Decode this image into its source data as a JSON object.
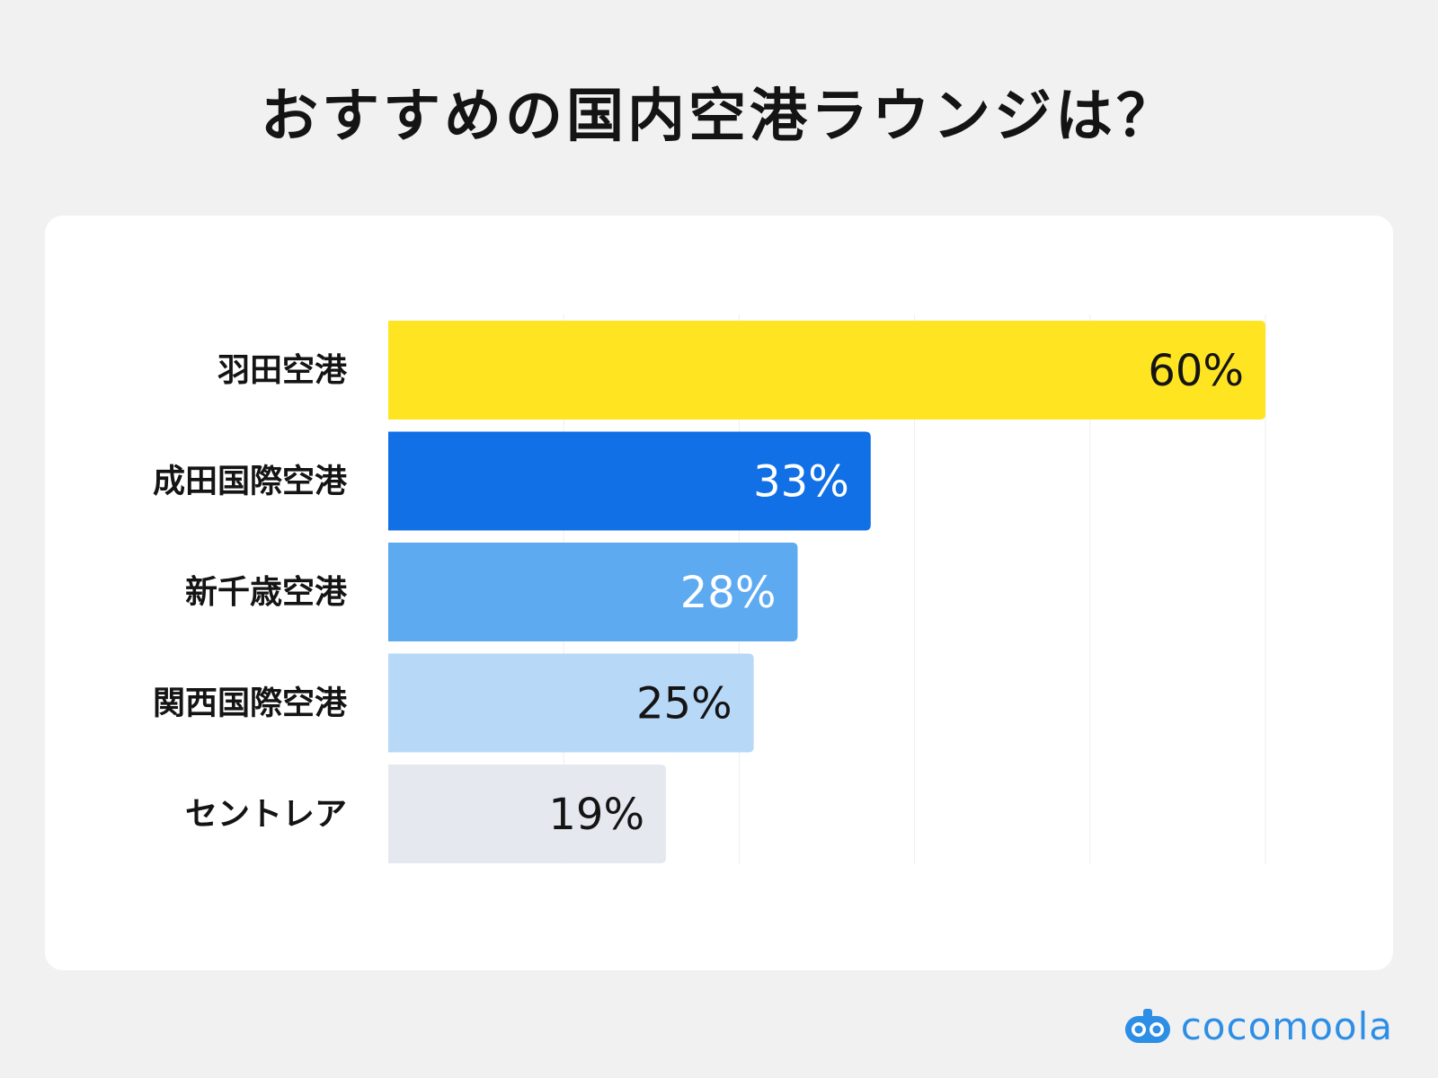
{
  "title": "おすすめの国内空港ラウンジは？",
  "brand": {
    "name": "cocomoola",
    "color": "#2d8ee6",
    "icon": "cocomoola-logo-icon"
  },
  "colors": {
    "bars": [
      "#ffe422",
      "#1170e5",
      "#5eaaf1",
      "#b8d8f8",
      "#e5e9ef"
    ],
    "label_on_bar": [
      "#141414",
      "#ffffff",
      "#ffffff",
      "#141414",
      "#141414"
    ],
    "grid": "#eeeeee"
  },
  "chart_data": {
    "type": "bar",
    "orientation": "horizontal",
    "categories": [
      "羽田空港",
      "成田国際空港",
      "新千歳空港",
      "関西国際空港",
      "セントレア"
    ],
    "values": [
      60,
      33,
      28,
      25,
      19
    ],
    "value_labels": [
      "60%",
      "33%",
      "28%",
      "25%",
      "19%"
    ],
    "unit": "%",
    "xlim": [
      0,
      60
    ],
    "grid": true,
    "legend": "none"
  }
}
